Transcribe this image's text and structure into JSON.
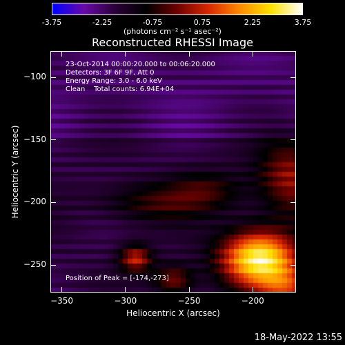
{
  "colorbar": {
    "units_label": "(photons cm⁻² s⁻¹ asec⁻²)",
    "tick_labels": [
      "-3.75",
      "-2.25",
      "-0.75",
      "0.75",
      "2.25",
      "3.75"
    ],
    "range": [
      -3.75,
      3.75
    ],
    "colors": [
      "#0000ff",
      "#6a0aa8",
      "#2a0038",
      "#000000",
      "#6e0000",
      "#d82800",
      "#ff8a00",
      "#ffe000",
      "#ffffff"
    ]
  },
  "title": "Reconstructed RHESSI Image",
  "info": {
    "time": "23-Oct-2014 00:00:20.000 to 00:06:20.000",
    "detectors": "Detectors: 3F 6F 9F, Att 0",
    "energy": "Energy Range: 3.0 - 6.0 keV",
    "clean": "Clean    Total counts: 6.94E+04",
    "peak": "Position of Peak = [-174,-273]"
  },
  "chart_data": {
    "type": "heatmap",
    "title": "Reconstructed RHESSI Image",
    "xlabel": "Heliocentric X (arcsec)",
    "ylabel": "Heliocentric Y (arcsec)",
    "xlim": [
      -359,
      -166
    ],
    "ylim": [
      -272,
      -79
    ],
    "x_ticks": [
      -350,
      -300,
      -250,
      -200
    ],
    "y_ticks": [
      -100,
      -150,
      -200,
      -250
    ],
    "peak": {
      "x": -174,
      "y": -273
    },
    "colorbar_range": [
      -3.75,
      3.75
    ]
  },
  "datestamp": "18-May-2022 13:55"
}
